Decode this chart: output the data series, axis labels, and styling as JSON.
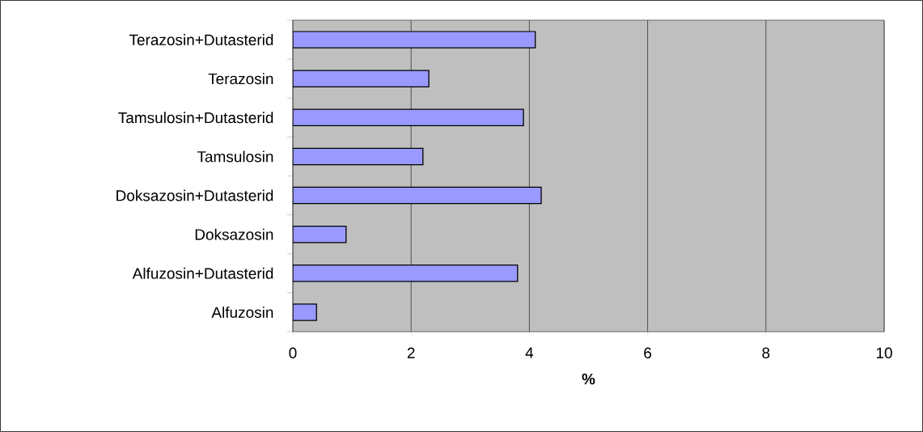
{
  "chart_data": {
    "type": "bar",
    "orientation": "horizontal",
    "xlabel": "%",
    "categories": [
      "Terazosin+Dutasterid",
      "Terazosin",
      "Tamsulosin+Dutasterid",
      "Tamsulosin",
      "Doksazosin+Dutasterid",
      "Doksazosin",
      "Alfuzosin+Dutasterid",
      "Alfuzosin"
    ],
    "values": [
      4.1,
      2.3,
      3.9,
      2.2,
      4.2,
      0.9,
      3.8,
      0.4
    ],
    "color": "#9999ff",
    "xlim": [
      0,
      10
    ],
    "xticks": [
      0,
      2,
      4,
      6,
      8,
      10
    ],
    "grid": "x"
  }
}
